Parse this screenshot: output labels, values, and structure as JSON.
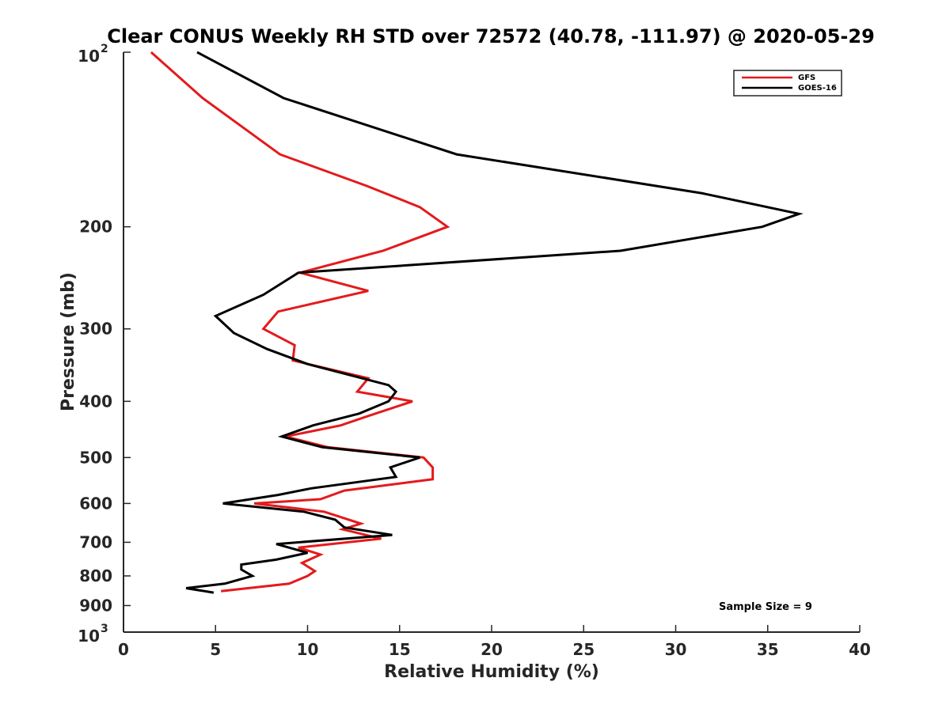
{
  "chart_data": {
    "type": "line",
    "title": "Clear CONUS Weekly RH STD over 72572 (40.78, -111.97) @ 2020-05-29",
    "xlabel": "Relative Humidity (%)",
    "ylabel": "Pressure (mb)",
    "xlim": [
      0,
      40
    ],
    "ylim": [
      100,
      1000
    ],
    "yscale": "log",
    "y_reversed": true,
    "x_ticks": [
      0,
      5,
      10,
      15,
      20,
      25,
      30,
      35,
      40
    ],
    "x_tick_labels": [
      "0",
      "5",
      "10",
      "15",
      "20",
      "25",
      "30",
      "35",
      "40"
    ],
    "y_ticks": [
      200,
      300,
      400,
      500,
      600,
      700,
      800,
      900
    ],
    "y_tick_labels": [
      "200",
      "300",
      "400",
      "500",
      "600",
      "700",
      "800",
      "900"
    ],
    "y_power_ticks": [
      {
        "value": 100,
        "base": "10",
        "exp": "2"
      },
      {
        "value": 1000,
        "base": "10",
        "exp": "3"
      }
    ],
    "legend_position": "top-right",
    "annotation": "Sample Size = 9",
    "series": [
      {
        "name": "GFS",
        "color": "#e41a1c",
        "points": [
          [
            1.5,
            100
          ],
          [
            4.3,
            120
          ],
          [
            8.5,
            150
          ],
          [
            13.2,
            170
          ],
          [
            16.1,
            185
          ],
          [
            17.6,
            200
          ],
          [
            14.1,
            220
          ],
          [
            9.6,
            240
          ],
          [
            13.3,
            258
          ],
          [
            8.4,
            280
          ],
          [
            7.6,
            300
          ],
          [
            9.3,
            320
          ],
          [
            9.2,
            340
          ],
          [
            13.3,
            365
          ],
          [
            12.7,
            385
          ],
          [
            15.7,
            400
          ],
          [
            13.2,
            425
          ],
          [
            11.8,
            440
          ],
          [
            8.8,
            460
          ],
          [
            11.1,
            480
          ],
          [
            16.3,
            500
          ],
          [
            16.8,
            520
          ],
          [
            16.8,
            545
          ],
          [
            12.0,
            570
          ],
          [
            10.7,
            590
          ],
          [
            7.1,
            600
          ],
          [
            10.9,
            620
          ],
          [
            12.9,
            650
          ],
          [
            11.9,
            665
          ],
          [
            14.0,
            690
          ],
          [
            9.5,
            715
          ],
          [
            10.7,
            735
          ],
          [
            9.7,
            760
          ],
          [
            10.4,
            785
          ],
          [
            10.0,
            800
          ],
          [
            9.0,
            825
          ],
          [
            5.3,
            850
          ]
        ]
      },
      {
        "name": "GOES-16",
        "color": "#000000",
        "points": [
          [
            4.0,
            100
          ],
          [
            8.7,
            120
          ],
          [
            18.1,
            150
          ],
          [
            31.4,
            175
          ],
          [
            36.7,
            190
          ],
          [
            34.7,
            200
          ],
          [
            27.0,
            220
          ],
          [
            9.5,
            240
          ],
          [
            7.6,
            262
          ],
          [
            5.0,
            285
          ],
          [
            6.0,
            305
          ],
          [
            7.8,
            325
          ],
          [
            10.0,
            345
          ],
          [
            14.4,
            375
          ],
          [
            14.8,
            385
          ],
          [
            14.4,
            400
          ],
          [
            12.8,
            420
          ],
          [
            10.3,
            440
          ],
          [
            8.6,
            460
          ],
          [
            10.8,
            480
          ],
          [
            16.1,
            500
          ],
          [
            14.5,
            520
          ],
          [
            14.8,
            540
          ],
          [
            10.2,
            565
          ],
          [
            8.4,
            580
          ],
          [
            5.4,
            600
          ],
          [
            9.8,
            620
          ],
          [
            11.5,
            640
          ],
          [
            12.0,
            660
          ],
          [
            14.6,
            680
          ],
          [
            8.3,
            705
          ],
          [
            10.0,
            730
          ],
          [
            8.3,
            750
          ],
          [
            6.4,
            765
          ],
          [
            6.4,
            780
          ],
          [
            7.0,
            800
          ],
          [
            5.5,
            825
          ],
          [
            3.4,
            840
          ],
          [
            4.9,
            855
          ]
        ]
      }
    ]
  }
}
